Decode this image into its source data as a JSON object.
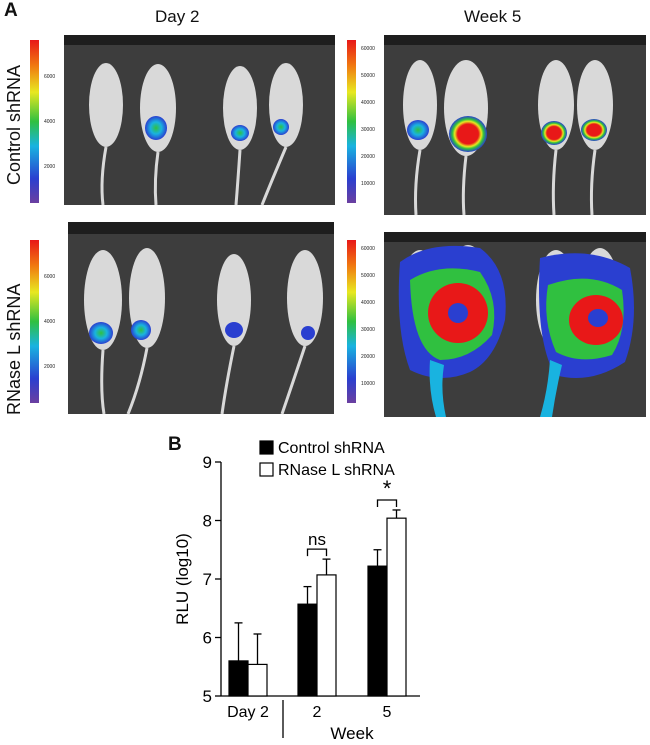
{
  "panel_a": {
    "label": "A",
    "column_titles": [
      "Day 2",
      "Week 5"
    ],
    "row_titles": [
      "Control shRNA",
      "RNase L shRNA"
    ],
    "colorbar_ticks": {
      "day2": [
        "6000",
        "4000",
        "2000"
      ],
      "week5": [
        "60000",
        "50000",
        "40000",
        "30000",
        "20000",
        "10000"
      ]
    }
  },
  "panel_b": {
    "label": "B"
  },
  "chart_data": {
    "type": "bar",
    "categories": [
      "Day 2",
      "2",
      "5"
    ],
    "series": [
      {
        "name": "Control shRNA",
        "values": [
          5.6,
          6.57,
          7.22
        ],
        "errors": [
          0.65,
          0.3,
          0.28
        ],
        "color": "#000000"
      },
      {
        "name": "RNase L shRNA",
        "values": [
          5.54,
          7.07,
          8.04
        ],
        "errors": [
          0.52,
          0.27,
          0.14
        ],
        "color": "#ffffff"
      }
    ],
    "title": "",
    "xlabel": "Week",
    "ylabel": "RLU (log10)",
    "ylim": [
      5,
      9
    ],
    "yticks": [
      "5",
      "6",
      "7",
      "8",
      "9"
    ],
    "annotations": [
      {
        "category": "2",
        "text": "ns"
      },
      {
        "category": "5",
        "text": "*"
      }
    ],
    "legend": "top-center",
    "grid": false
  }
}
